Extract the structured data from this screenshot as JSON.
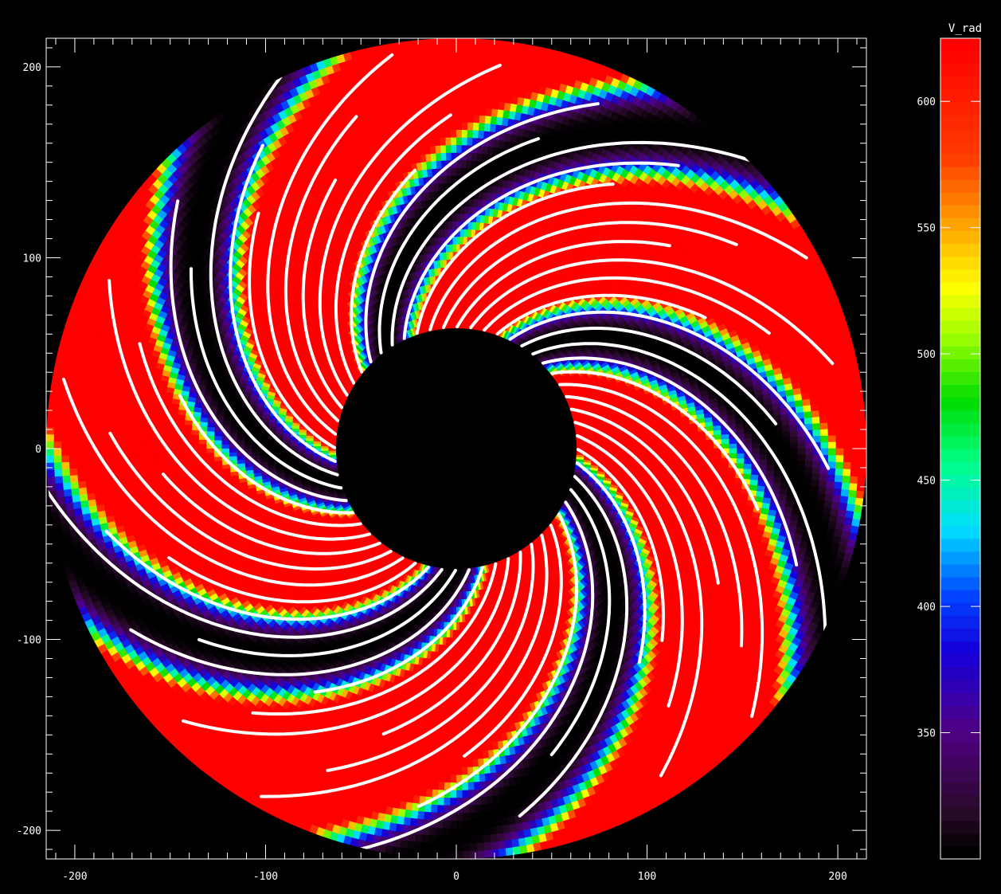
{
  "chart_data": {
    "type": "heatmap",
    "title": "",
    "xlabel": "",
    "ylabel": "",
    "xlim": [
      -215,
      215
    ],
    "ylim": [
      -215,
      215
    ],
    "x_ticks": [
      -200,
      -100,
      0,
      100,
      200
    ],
    "y_ticks": [
      200,
      100,
      0,
      -100,
      -200
    ],
    "inner_radius": 63,
    "outer_radius": 215,
    "grid": false,
    "overlay": "white spiral field lines",
    "colormap": "rainbow (black-purple-blue-cyan-green-yellow-orange-red)",
    "colorbar": {
      "title": "V_rad",
      "range": [
        300,
        625
      ],
      "ticks": [
        600,
        550,
        500,
        450,
        400,
        350
      ],
      "placement": "right"
    }
  }
}
